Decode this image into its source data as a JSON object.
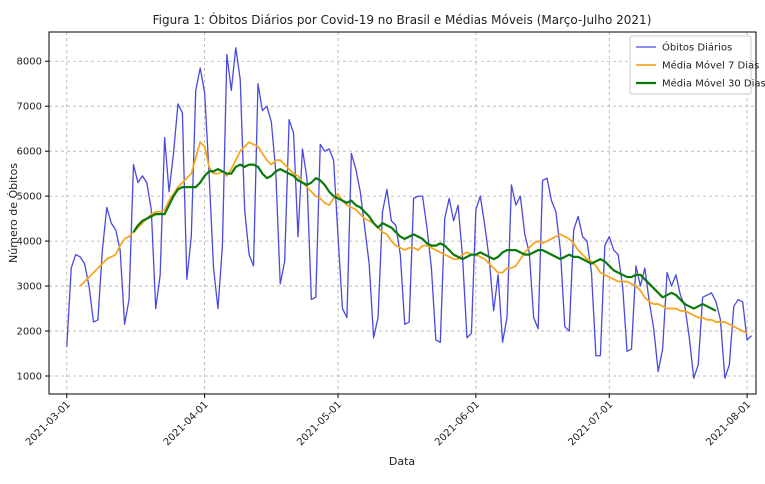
{
  "chart_data": {
    "type": "line",
    "title": "Figura 1: Óbitos Diários por Covid-19 no Brasil e Médias Móveis (Março-Julho 2021)",
    "xlabel": "Data",
    "ylabel": "Número de Óbitos",
    "xlim": [
      "2021-02-25",
      "2021-08-03"
    ],
    "ylim": [
      600,
      8650
    ],
    "x_ticks": [
      "2021-03-01",
      "2021-04-01",
      "2021-05-01",
      "2021-06-01",
      "2021-07-01",
      "2021-08-01"
    ],
    "y_ticks": [
      1000,
      2000,
      3000,
      4000,
      5000,
      6000,
      7000,
      8000
    ],
    "grid": true,
    "legend_position": "top-right",
    "series": [
      {
        "name": "Óbitos Diários",
        "color": "#4a4ae0",
        "start_date": "2021-03-01",
        "values": [
          1650,
          3400,
          3700,
          3650,
          3500,
          3000,
          2200,
          2250,
          3800,
          4750,
          4400,
          4250,
          3800,
          2150,
          2700,
          5700,
          5300,
          5450,
          5300,
          4700,
          2500,
          3250,
          6300,
          5100,
          5950,
          7050,
          6850,
          3150,
          4100,
          7350,
          7850,
          7300,
          5500,
          3400,
          2500,
          3900,
          8150,
          7350,
          8300,
          7600,
          4700,
          3700,
          3450,
          7500,
          6900,
          7000,
          6650,
          5550,
          3050,
          3550,
          6700,
          6400,
          4100,
          6050,
          5400,
          2700,
          2750,
          6150,
          6000,
          6050,
          5800,
          4100,
          2500,
          2300,
          5950,
          5600,
          5100,
          4300,
          3500,
          1850,
          2300,
          4650,
          5150,
          4450,
          4350,
          3700,
          2150,
          2200,
          4950,
          5000,
          5000,
          4300,
          3400,
          1800,
          1750,
          4500,
          4950,
          4450,
          4800,
          3650,
          1850,
          1950,
          4700,
          5000,
          4350,
          3600,
          2450,
          3250,
          1750,
          2300,
          5250,
          4800,
          5000,
          4150,
          3750,
          2300,
          2050,
          5350,
          5400,
          4900,
          4650,
          3800,
          2100,
          2000,
          4250,
          4550,
          4100,
          4000,
          3300,
          1450,
          1450,
          3900,
          4100,
          3800,
          3700,
          3000,
          1550,
          1600,
          3450,
          3000,
          3400,
          2650,
          2050,
          1100,
          1600,
          3300,
          3000,
          3250,
          2800,
          2550,
          1850,
          950,
          1250,
          2750,
          2800,
          2850,
          2650,
          2250,
          950,
          1250,
          2550,
          2700,
          2650,
          1800,
          1900
        ]
      },
      {
        "name": "Média Móvel 7 Dias",
        "color": "#f5a623",
        "start_date": "2021-03-04",
        "values": [
          3000,
          3100,
          3200,
          3300,
          3400,
          3500,
          3600,
          3650,
          3700,
          3900,
          4050,
          4100,
          4200,
          4300,
          4400,
          4500,
          4600,
          4650,
          4650,
          4700,
          4900,
          5050,
          5200,
          5300,
          5400,
          5500,
          5850,
          6200,
          6100,
          5650,
          5500,
          5500,
          5550,
          5450,
          5600,
          5800,
          6000,
          6100,
          6200,
          6150,
          6100,
          5950,
          5800,
          5700,
          5800,
          5800,
          5700,
          5600,
          5500,
          5450,
          5300,
          5200,
          5100,
          5000,
          4950,
          4850,
          4800,
          4950,
          5050,
          4900,
          4800,
          4750,
          4700,
          4600,
          4500,
          4450,
          4400,
          4300,
          4200,
          4150,
          4000,
          3900,
          3850,
          3800,
          3850,
          3850,
          3800,
          3900,
          3900,
          3850,
          3800,
          3750,
          3700,
          3650,
          3600,
          3600,
          3700,
          3750,
          3700,
          3700,
          3650,
          3600,
          3500,
          3400,
          3300,
          3300,
          3400,
          3400,
          3450,
          3600,
          3750,
          3850,
          3950,
          4000,
          3950,
          4000,
          4050,
          4100,
          4150,
          4100,
          4050,
          3950,
          3800,
          3700,
          3600,
          3550,
          3450,
          3300,
          3250,
          3200,
          3150,
          3100,
          3100,
          3100,
          3050,
          3000,
          2900,
          2750,
          2650,
          2600,
          2600,
          2550,
          2500,
          2500,
          2500,
          2450,
          2450,
          2400,
          2350,
          2300,
          2300,
          2250,
          2250,
          2200,
          2200,
          2200,
          2150,
          2100,
          2050,
          2000,
          1950
        ]
      },
      {
        "name": "Média Móvel 30 Dias",
        "color": "#0a7a0a",
        "start_date": "2021-03-16",
        "values": [
          4200,
          4350,
          4450,
          4500,
          4550,
          4600,
          4600,
          4600,
          4800,
          5000,
          5150,
          5200,
          5200,
          5200,
          5200,
          5300,
          5450,
          5550,
          5550,
          5600,
          5550,
          5500,
          5500,
          5650,
          5700,
          5650,
          5700,
          5700,
          5650,
          5500,
          5400,
          5450,
          5550,
          5600,
          5550,
          5500,
          5450,
          5350,
          5300,
          5250,
          5300,
          5400,
          5350,
          5250,
          5100,
          5000,
          4950,
          4900,
          4850,
          4900,
          4800,
          4750,
          4650,
          4550,
          4400,
          4300,
          4400,
          4350,
          4300,
          4200,
          4100,
          4050,
          4100,
          4150,
          4100,
          4050,
          3950,
          3900,
          3900,
          3950,
          3900,
          3800,
          3700,
          3650,
          3600,
          3650,
          3700,
          3700,
          3750,
          3700,
          3650,
          3600,
          3650,
          3750,
          3800,
          3800,
          3800,
          3750,
          3700,
          3700,
          3750,
          3800,
          3800,
          3750,
          3700,
          3650,
          3600,
          3650,
          3700,
          3650,
          3650,
          3600,
          3550,
          3500,
          3550,
          3600,
          3550,
          3450,
          3350,
          3300,
          3250,
          3200,
          3200,
          3250,
          3250,
          3150,
          3050,
          2950,
          2850,
          2750,
          2800,
          2850,
          2800,
          2700,
          2600,
          2550,
          2500,
          2550,
          2600,
          2550,
          2500,
          2450
        ]
      }
    ]
  }
}
